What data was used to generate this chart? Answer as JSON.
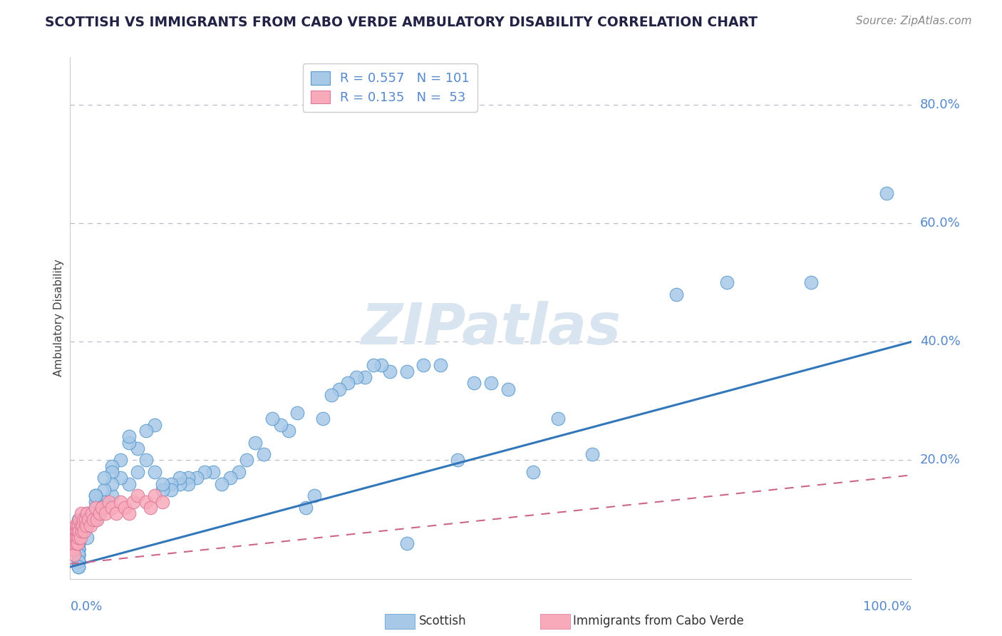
{
  "title": "SCOTTISH VS IMMIGRANTS FROM CABO VERDE AMBULATORY DISABILITY CORRELATION CHART",
  "source": "Source: ZipAtlas.com",
  "ylabel": "Ambulatory Disability",
  "xlim": [
    0.0,
    1.0
  ],
  "ylim": [
    0.0,
    0.88
  ],
  "ytick_positions": [
    0.2,
    0.4,
    0.6,
    0.8
  ],
  "ytick_labels": [
    "20.0%",
    "40.0%",
    "60.0%",
    "80.0%"
  ],
  "legend_r1": "R = 0.557",
  "legend_n1": "N = 101",
  "legend_r2": "R = 0.135",
  "legend_n2": "N =  53",
  "legend_label1": "Scottish",
  "legend_label2": "Immigrants from Cabo Verde",
  "watermark": "ZIPatlas",
  "blue_fill": "#A8C8E8",
  "blue_edge": "#5599CC",
  "pink_fill": "#F8AABB",
  "pink_edge": "#DD7799",
  "blue_line": "#3377BB",
  "pink_line": "#CC6688",
  "title_color": "#222244",
  "axis_label_color": "#5588CC",
  "grid_color": "#BBBBCC",
  "background_color": "#FFFFFF",
  "blue_line_x": [
    0.0,
    1.0
  ],
  "blue_line_y": [
    0.02,
    0.4
  ],
  "pink_line_x": [
    0.0,
    1.0
  ],
  "pink_line_y": [
    0.025,
    0.175
  ],
  "scottish_x": [
    0.97,
    0.88,
    0.78,
    0.72,
    0.62,
    0.58,
    0.55,
    0.52,
    0.5,
    0.48,
    0.46,
    0.44,
    0.42,
    0.4,
    0.4,
    0.38,
    0.37,
    0.36,
    0.35,
    0.34,
    0.33,
    0.32,
    0.31,
    0.3,
    0.29,
    0.28,
    0.27,
    0.26,
    0.25,
    0.24,
    0.23,
    0.22,
    0.21,
    0.2,
    0.19,
    0.18,
    0.17,
    0.16,
    0.15,
    0.14,
    0.14,
    0.13,
    0.13,
    0.12,
    0.12,
    0.11,
    0.11,
    0.1,
    0.1,
    0.09,
    0.09,
    0.08,
    0.08,
    0.07,
    0.07,
    0.07,
    0.06,
    0.06,
    0.05,
    0.05,
    0.05,
    0.05,
    0.04,
    0.04,
    0.04,
    0.04,
    0.03,
    0.03,
    0.03,
    0.03,
    0.03,
    0.03,
    0.02,
    0.02,
    0.02,
    0.02,
    0.01,
    0.01,
    0.01,
    0.01,
    0.01,
    0.01,
    0.01,
    0.01,
    0.01,
    0.01,
    0.01,
    0.01,
    0.01,
    0.01,
    0.01,
    0.01,
    0.01,
    0.01,
    0.01,
    0.01,
    0.01,
    0.01,
    0.01,
    0.01,
    0.01
  ],
  "scottish_y": [
    0.65,
    0.5,
    0.5,
    0.48,
    0.21,
    0.27,
    0.18,
    0.32,
    0.33,
    0.33,
    0.2,
    0.36,
    0.36,
    0.35,
    0.06,
    0.35,
    0.36,
    0.36,
    0.34,
    0.34,
    0.33,
    0.32,
    0.31,
    0.27,
    0.14,
    0.12,
    0.28,
    0.25,
    0.26,
    0.27,
    0.21,
    0.23,
    0.2,
    0.18,
    0.17,
    0.16,
    0.18,
    0.18,
    0.17,
    0.17,
    0.16,
    0.16,
    0.17,
    0.16,
    0.15,
    0.15,
    0.16,
    0.18,
    0.26,
    0.25,
    0.2,
    0.18,
    0.22,
    0.23,
    0.24,
    0.16,
    0.17,
    0.2,
    0.19,
    0.18,
    0.14,
    0.16,
    0.15,
    0.13,
    0.17,
    0.12,
    0.13,
    0.14,
    0.1,
    0.11,
    0.12,
    0.14,
    0.11,
    0.1,
    0.09,
    0.07,
    0.1,
    0.09,
    0.08,
    0.07,
    0.06,
    0.07,
    0.08,
    0.06,
    0.05,
    0.07,
    0.06,
    0.05,
    0.06,
    0.05,
    0.04,
    0.05,
    0.04,
    0.03,
    0.04,
    0.03,
    0.04,
    0.03,
    0.02,
    0.03,
    0.02
  ],
  "cv_x": [
    0.001,
    0.002,
    0.002,
    0.003,
    0.003,
    0.004,
    0.004,
    0.005,
    0.005,
    0.005,
    0.006,
    0.006,
    0.007,
    0.007,
    0.008,
    0.008,
    0.009,
    0.009,
    0.01,
    0.01,
    0.011,
    0.011,
    0.012,
    0.013,
    0.013,
    0.014,
    0.015,
    0.016,
    0.017,
    0.018,
    0.019,
    0.02,
    0.022,
    0.024,
    0.026,
    0.028,
    0.03,
    0.032,
    0.035,
    0.038,
    0.042,
    0.046,
    0.05,
    0.055,
    0.06,
    0.065,
    0.07,
    0.075,
    0.08,
    0.09,
    0.095,
    0.1,
    0.11
  ],
  "cv_y": [
    0.06,
    0.05,
    0.07,
    0.06,
    0.08,
    0.05,
    0.07,
    0.06,
    0.08,
    0.04,
    0.07,
    0.09,
    0.06,
    0.08,
    0.07,
    0.09,
    0.06,
    0.08,
    0.07,
    0.09,
    0.08,
    0.1,
    0.07,
    0.09,
    0.11,
    0.08,
    0.09,
    0.1,
    0.08,
    0.1,
    0.09,
    0.11,
    0.1,
    0.09,
    0.11,
    0.1,
    0.12,
    0.1,
    0.11,
    0.12,
    0.11,
    0.13,
    0.12,
    0.11,
    0.13,
    0.12,
    0.11,
    0.13,
    0.14,
    0.13,
    0.12,
    0.14,
    0.13
  ]
}
